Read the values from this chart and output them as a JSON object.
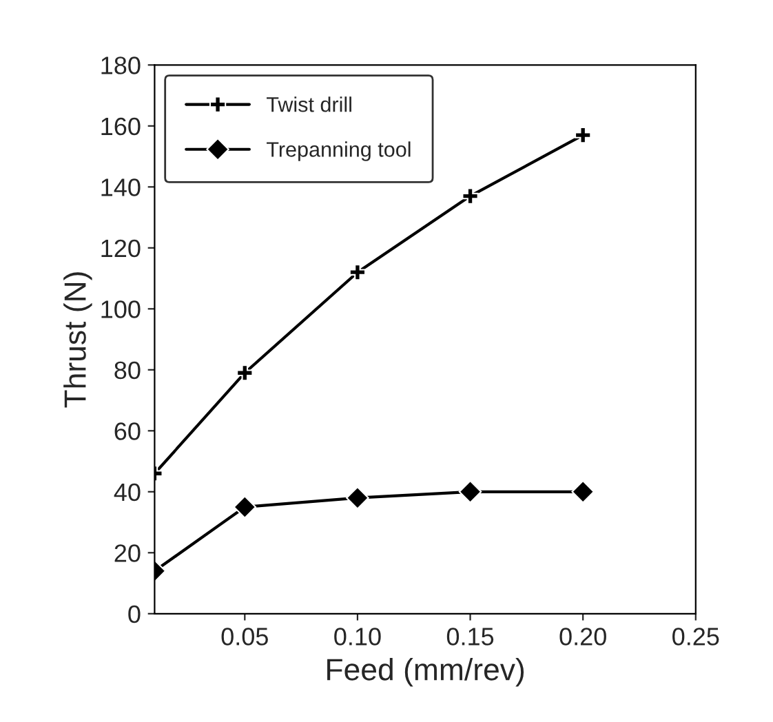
{
  "chart_data": {
    "type": "line",
    "xlabel": "Feed (mm/rev)",
    "ylabel": "Thrust (N)",
    "x": [
      0.01,
      0.05,
      0.1,
      0.15,
      0.2
    ],
    "series": [
      {
        "name": "Twist drill",
        "color": "#000000",
        "marker": "cross",
        "values": [
          46,
          79,
          112,
          137,
          157
        ]
      },
      {
        "name": "Trepanning tool",
        "color": "#000000",
        "marker": "diamond",
        "values": [
          14,
          35,
          38,
          40,
          40
        ]
      }
    ],
    "xlim": [
      0.01,
      0.25
    ],
    "xticks": [
      {
        "value": 0.05,
        "label": "0.05"
      },
      {
        "value": 0.1,
        "label": "0.10"
      },
      {
        "value": 0.15,
        "label": "0.15"
      },
      {
        "value": 0.2,
        "label": "0.20"
      },
      {
        "value": 0.25,
        "label": "0.25"
      }
    ],
    "ylim": [
      0,
      180
    ],
    "yticks": [
      0,
      20,
      40,
      60,
      80,
      100,
      120,
      140,
      160,
      180
    ],
    "grid": false,
    "legend": "top left",
    "line_style": "solid"
  }
}
